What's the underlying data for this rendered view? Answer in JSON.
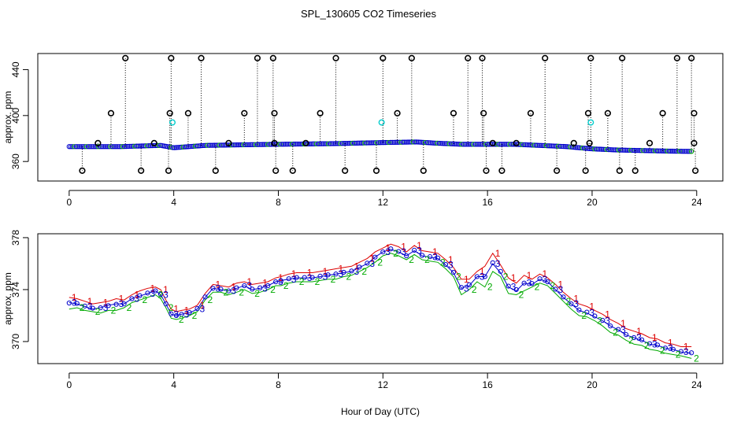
{
  "chart_data": [
    {
      "type": "scatter",
      "title": "SPL_130605  CO2 Timeseries",
      "xlabel": "",
      "ylabel": "approx. ppm",
      "xlim": [
        -1.2,
        25
      ],
      "ylim": [
        343,
        454
      ],
      "xticks": [
        0,
        4,
        8,
        12,
        16,
        20,
        24
      ],
      "xtick_labels": [
        "0",
        "4",
        "8",
        "12",
        "16",
        "20",
        "24"
      ],
      "yticks": [
        360,
        400,
        440
      ],
      "ytick_labels": [
        "360",
        "400",
        "440"
      ],
      "colors": {
        "blue": "#0000cc",
        "green": "#00aa00",
        "red": "#dd0000",
        "cyan": "#00cccc",
        "black": "#000000"
      },
      "baseline_series": [
        {
          "x": 0.0,
          "y": 373
        },
        {
          "x": 2.0,
          "y": 373
        },
        {
          "x": 3.5,
          "y": 374
        },
        {
          "x": 4.0,
          "y": 372
        },
        {
          "x": 5.2,
          "y": 374
        },
        {
          "x": 6.5,
          "y": 374.5
        },
        {
          "x": 8.0,
          "y": 375
        },
        {
          "x": 10.0,
          "y": 375.5
        },
        {
          "x": 12.0,
          "y": 376.5
        },
        {
          "x": 13.3,
          "y": 377
        },
        {
          "x": 14.0,
          "y": 376
        },
        {
          "x": 15.0,
          "y": 375
        },
        {
          "x": 16.0,
          "y": 375
        },
        {
          "x": 17.0,
          "y": 375
        },
        {
          "x": 18.0,
          "y": 374
        },
        {
          "x": 19.0,
          "y": 373
        },
        {
          "x": 20.0,
          "y": 371
        },
        {
          "x": 21.0,
          "y": 370
        },
        {
          "x": 22.0,
          "y": 369.5
        },
        {
          "x": 23.0,
          "y": 369
        },
        {
          "x": 23.8,
          "y": 368.8
        }
      ],
      "outliers_high": [
        {
          "x": 2.15,
          "y": 450
        },
        {
          "x": 3.9,
          "y": 450
        },
        {
          "x": 5.05,
          "y": 450
        },
        {
          "x": 7.2,
          "y": 450
        },
        {
          "x": 7.8,
          "y": 450
        },
        {
          "x": 10.2,
          "y": 450
        },
        {
          "x": 12.0,
          "y": 450
        },
        {
          "x": 13.1,
          "y": 450
        },
        {
          "x": 15.25,
          "y": 450
        },
        {
          "x": 15.8,
          "y": 450
        },
        {
          "x": 18.2,
          "y": 450
        },
        {
          "x": 19.95,
          "y": 450
        },
        {
          "x": 21.15,
          "y": 450
        },
        {
          "x": 23.25,
          "y": 450
        },
        {
          "x": 23.8,
          "y": 450
        }
      ],
      "outliers_mid": [
        {
          "x": 1.6,
          "y": 402
        },
        {
          "x": 3.85,
          "y": 402
        },
        {
          "x": 4.55,
          "y": 402
        },
        {
          "x": 6.7,
          "y": 402
        },
        {
          "x": 7.85,
          "y": 402
        },
        {
          "x": 9.6,
          "y": 402
        },
        {
          "x": 12.55,
          "y": 402
        },
        {
          "x": 14.7,
          "y": 402
        },
        {
          "x": 15.85,
          "y": 402
        },
        {
          "x": 17.65,
          "y": 402
        },
        {
          "x": 19.85,
          "y": 402
        },
        {
          "x": 20.6,
          "y": 402
        },
        {
          "x": 22.7,
          "y": 402
        },
        {
          "x": 23.9,
          "y": 402
        }
      ],
      "outliers_low": [
        {
          "x": 0.5,
          "y": 352
        },
        {
          "x": 2.75,
          "y": 352
        },
        {
          "x": 3.8,
          "y": 352
        },
        {
          "x": 5.6,
          "y": 352
        },
        {
          "x": 7.9,
          "y": 352
        },
        {
          "x": 8.55,
          "y": 352
        },
        {
          "x": 10.55,
          "y": 352
        },
        {
          "x": 11.75,
          "y": 352
        },
        {
          "x": 13.55,
          "y": 352
        },
        {
          "x": 15.95,
          "y": 352
        },
        {
          "x": 16.55,
          "y": 352
        },
        {
          "x": 18.65,
          "y": 352
        },
        {
          "x": 19.75,
          "y": 352
        },
        {
          "x": 21.05,
          "y": 352
        },
        {
          "x": 21.65,
          "y": 352
        },
        {
          "x": 23.95,
          "y": 352
        }
      ],
      "outliers_near": [
        {
          "x": 1.1,
          "y": 376
        },
        {
          "x": 3.25,
          "y": 376
        },
        {
          "x": 6.1,
          "y": 376
        },
        {
          "x": 7.85,
          "y": 376
        },
        {
          "x": 9.05,
          "y": 376
        },
        {
          "x": 16.2,
          "y": 376
        },
        {
          "x": 17.1,
          "y": 376
        },
        {
          "x": 19.3,
          "y": 376
        },
        {
          "x": 19.9,
          "y": 376
        },
        {
          "x": 22.2,
          "y": 376
        },
        {
          "x": 23.9,
          "y": 376
        }
      ],
      "cyan_points": [
        {
          "x": 3.95,
          "y": 394
        },
        {
          "x": 11.95,
          "y": 394
        },
        {
          "x": 19.95,
          "y": 394
        }
      ]
    },
    {
      "type": "line",
      "title": "",
      "xlabel": "Hour of Day (UTC)",
      "ylabel": "approx. ppm",
      "xlim": [
        -1.2,
        25
      ],
      "ylim": [
        368.3,
        378.3
      ],
      "xticks": [
        0,
        4,
        8,
        12,
        16,
        20,
        24
      ],
      "xtick_labels": [
        "0",
        "4",
        "8",
        "12",
        "16",
        "20",
        "24"
      ],
      "yticks": [
        370,
        374,
        378
      ],
      "ytick_labels": [
        "370",
        "374",
        "378"
      ],
      "point_symbols": [
        "1",
        "2",
        "3"
      ],
      "colors": {
        "series_1": "#dd0000",
        "series_2": "#00aa00",
        "series_3": "#0000cc",
        "markers": "#0000cc"
      },
      "x": [
        0.0,
        0.3,
        0.6,
        0.9,
        1.2,
        1.5,
        1.8,
        2.1,
        2.4,
        2.7,
        3.0,
        3.3,
        3.5,
        3.7,
        3.9,
        4.1,
        4.3,
        4.6,
        4.9,
        5.2,
        5.5,
        5.8,
        6.1,
        6.4,
        6.7,
        7.0,
        7.3,
        7.6,
        7.9,
        8.1,
        8.4,
        8.7,
        9.0,
        9.3,
        9.6,
        9.9,
        10.2,
        10.5,
        10.8,
        11.1,
        11.4,
        11.7,
        12.0,
        12.3,
        12.6,
        12.9,
        13.2,
        13.5,
        13.8,
        14.1,
        14.4,
        14.7,
        15.0,
        15.3,
        15.6,
        15.9,
        16.2,
        16.5,
        16.8,
        17.1,
        17.4,
        17.7,
        18.0,
        18.3,
        18.6,
        18.9,
        19.2,
        19.5,
        19.8,
        20.1,
        20.4,
        20.7,
        21.0,
        21.3,
        21.6,
        21.9,
        22.2,
        22.5,
        22.8,
        23.1,
        23.4,
        23.8
      ],
      "series": [
        {
          "name": "1",
          "values": [
            373.4,
            373.3,
            373.1,
            372.9,
            373.0,
            373.1,
            373.3,
            373.2,
            373.6,
            373.9,
            374.1,
            374.2,
            374.0,
            373.2,
            372.5,
            372.3,
            372.4,
            372.5,
            372.8,
            373.7,
            374.4,
            374.3,
            374.2,
            374.5,
            374.6,
            374.4,
            374.5,
            374.6,
            374.9,
            375.0,
            375.2,
            375.3,
            375.3,
            375.3,
            375.4,
            375.5,
            375.6,
            375.7,
            375.8,
            376.1,
            376.4,
            376.9,
            377.2,
            377.5,
            377.3,
            376.9,
            377.4,
            377.0,
            376.9,
            376.8,
            376.3,
            375.7,
            374.8,
            374.8,
            375.4,
            375.8,
            376.8,
            375.9,
            374.9,
            374.5,
            375.1,
            374.8,
            375.2,
            374.9,
            374.4,
            373.8,
            373.3,
            372.9,
            372.7,
            372.4,
            372.1,
            371.7,
            371.4,
            371.0,
            370.8,
            370.6,
            370.3,
            370.2,
            369.9,
            369.8,
            369.6,
            369.6
          ]
        },
        {
          "name": "2",
          "values": [
            372.5,
            372.6,
            372.4,
            372.3,
            372.2,
            372.4,
            372.4,
            372.6,
            373.0,
            373.2,
            373.4,
            373.6,
            373.3,
            372.6,
            371.8,
            371.7,
            371.8,
            372.0,
            372.3,
            373.2,
            373.8,
            373.8,
            373.6,
            373.8,
            374.0,
            373.7,
            373.8,
            374.0,
            374.3,
            374.3,
            374.5,
            374.6,
            374.6,
            374.6,
            374.7,
            374.8,
            374.8,
            375.0,
            375.1,
            375.4,
            375.7,
            376.1,
            376.6,
            376.8,
            376.6,
            376.3,
            376.7,
            376.3,
            376.2,
            376.1,
            375.6,
            375.0,
            373.6,
            374.0,
            374.6,
            374.2,
            375.4,
            375.0,
            373.7,
            373.6,
            373.9,
            374.2,
            374.5,
            374.3,
            373.7,
            373.1,
            372.5,
            372.0,
            371.9,
            371.6,
            371.2,
            370.7,
            370.5,
            370.1,
            369.8,
            369.7,
            369.4,
            369.3,
            369.1,
            369.0,
            368.9,
            368.7
          ]
        },
        {
          "name": "3",
          "values": [
            373.0,
            372.9,
            372.7,
            372.5,
            372.6,
            372.8,
            372.9,
            372.9,
            373.3,
            373.5,
            373.7,
            373.9,
            373.6,
            372.9,
            372.1,
            372.0,
            372.1,
            372.2,
            372.5,
            373.4,
            374.1,
            374.0,
            373.9,
            374.1,
            374.3,
            374.0,
            374.1,
            374.3,
            374.6,
            374.7,
            374.8,
            374.9,
            374.9,
            374.9,
            375.0,
            375.1,
            375.2,
            375.3,
            375.4,
            375.7,
            376.0,
            376.5,
            376.9,
            377.1,
            376.9,
            376.6,
            377.0,
            376.6,
            376.5,
            376.4,
            375.9,
            375.3,
            374.1,
            374.3,
            375.0,
            375.0,
            376.0,
            375.3,
            374.2,
            373.9,
            374.5,
            374.4,
            374.8,
            374.6,
            374.0,
            373.4,
            372.9,
            372.4,
            372.2,
            371.9,
            371.6,
            371.2,
            370.9,
            370.5,
            370.3,
            370.1,
            369.8,
            369.7,
            369.5,
            369.4,
            369.2,
            369.1
          ]
        }
      ]
    }
  ]
}
